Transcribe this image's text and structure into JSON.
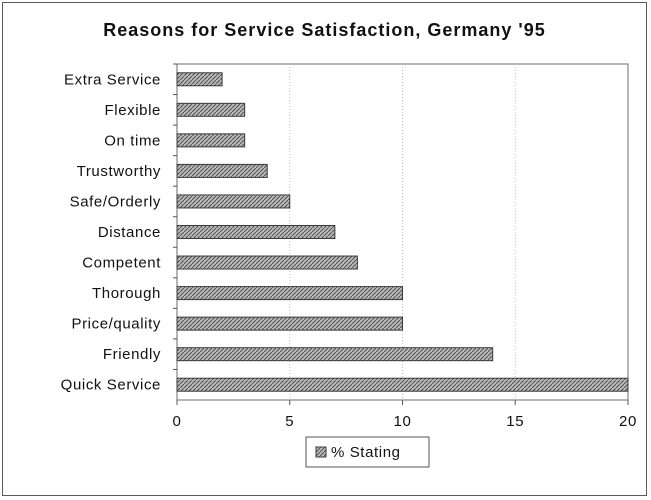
{
  "chart_data": {
    "type": "bar",
    "orientation": "horizontal",
    "title": "Reasons for Service Satisfaction, Germany '95",
    "xlabel": "",
    "ylabel": "",
    "categories": [
      "Extra Service",
      "Flexible",
      "On time",
      "Trustworthy",
      "Safe/Orderly",
      "Distance",
      "Competent",
      "Thorough",
      "Price/quality",
      "Friendly",
      "Quick Service"
    ],
    "series": [
      {
        "name": "% Stating",
        "values": [
          2,
          3,
          3,
          4,
          5,
          7,
          8,
          10,
          10,
          14,
          20
        ]
      }
    ],
    "xlim": [
      0,
      20
    ],
    "xticks": [
      "0",
      "5",
      "10",
      "15",
      "20"
    ],
    "grid": "vertical gridlines",
    "legend_position": "bottom-center",
    "bar_color": "#9a9a9a",
    "bar_border_color": "#3a3a3a"
  }
}
